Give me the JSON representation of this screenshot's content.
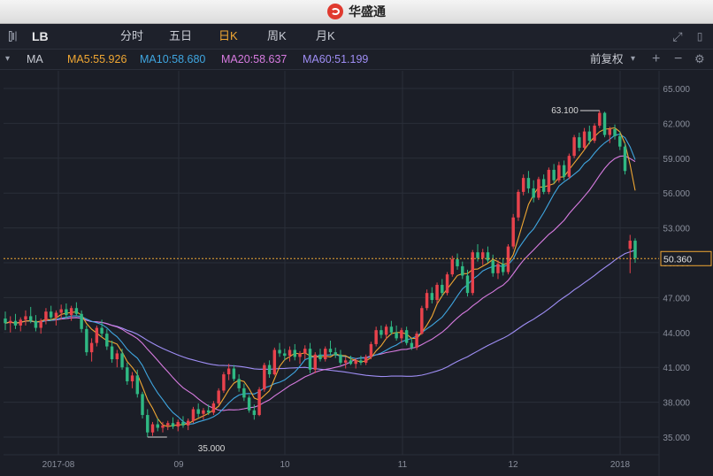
{
  "app": {
    "title": "华盛通"
  },
  "toolbar": {
    "symbol": "LB",
    "tabs": [
      {
        "label": "分时",
        "active": false
      },
      {
        "label": "五日",
        "active": false
      },
      {
        "label": "日K",
        "active": true
      },
      {
        "label": "周K",
        "active": false
      },
      {
        "label": "月K",
        "active": false
      }
    ]
  },
  "indicator": {
    "name": "MA",
    "ma5": "MA5:55.926",
    "ma10": "MA10:58.680",
    "ma20": "MA20:58.637",
    "ma60": "MA60:51.199",
    "adjust": "前复权",
    "colors": {
      "ma5": "#f0a733",
      "ma10": "#3fa6e0",
      "ma20": "#d77be0",
      "ma60": "#9f8ef5"
    }
  },
  "colors": {
    "up": "#e8424c",
    "down": "#2fb883",
    "accent": "#f0a733",
    "background": "#1b1e27"
  },
  "chart_data": {
    "type": "candlestick",
    "ylim": [
      34,
      66
    ],
    "yticks": [
      "65.000",
      "62.000",
      "59.000",
      "56.000",
      "53.000",
      "50.000",
      "47.000",
      "44.000",
      "41.000",
      "38.000",
      "35.000"
    ],
    "x_labels": [
      "2017-08",
      "09",
      "10",
      "11",
      "12",
      "2018"
    ],
    "last_price": "50.360",
    "high_label": "63.100",
    "low_label": "35.000",
    "ohlc": [
      [
        45.2,
        45.8,
        44.2,
        44.8
      ],
      [
        44.8,
        45.4,
        44.0,
        45.0
      ],
      [
        45.0,
        45.6,
        44.3,
        44.6
      ],
      [
        44.6,
        45.3,
        44.1,
        45.1
      ],
      [
        45.1,
        45.9,
        44.6,
        45.4
      ],
      [
        45.4,
        46.2,
        44.8,
        45.0
      ],
      [
        45.0,
        45.5,
        44.1,
        44.4
      ],
      [
        44.4,
        45.2,
        43.9,
        45.0
      ],
      [
        45.0,
        46.1,
        44.7,
        45.8
      ],
      [
        45.8,
        46.3,
        45.0,
        45.3
      ],
      [
        45.3,
        45.9,
        44.6,
        45.7
      ],
      [
        45.7,
        46.4,
        45.1,
        46.0
      ],
      [
        46.0,
        46.5,
        45.2,
        45.5
      ],
      [
        45.5,
        46.3,
        45.0,
        46.1
      ],
      [
        46.1,
        46.6,
        45.4,
        45.6
      ],
      [
        45.6,
        45.9,
        44.0,
        44.3
      ],
      [
        44.3,
        44.6,
        42.0,
        42.3
      ],
      [
        42.3,
        43.5,
        41.5,
        43.1
      ],
      [
        43.1,
        44.6,
        42.8,
        44.4
      ],
      [
        44.4,
        45.1,
        43.6,
        43.9
      ],
      [
        43.9,
        44.3,
        42.5,
        42.8
      ],
      [
        42.8,
        43.3,
        41.4,
        41.7
      ],
      [
        41.7,
        42.5,
        41.0,
        42.2
      ],
      [
        42.2,
        42.6,
        40.8,
        41.0
      ],
      [
        41.0,
        41.4,
        39.5,
        39.8
      ],
      [
        39.8,
        40.6,
        39.2,
        40.3
      ],
      [
        40.3,
        40.8,
        38.4,
        38.7
      ],
      [
        38.7,
        38.9,
        36.6,
        36.9
      ],
      [
        36.9,
        37.4,
        35.0,
        35.4
      ],
      [
        35.4,
        36.3,
        35.1,
        36.1
      ],
      [
        36.1,
        36.6,
        35.5,
        35.8
      ],
      [
        35.8,
        36.3,
        35.4,
        36.0
      ],
      [
        36.0,
        36.4,
        35.6,
        36.2
      ],
      [
        36.2,
        36.7,
        35.7,
        35.9
      ],
      [
        35.9,
        36.5,
        35.5,
        36.3
      ],
      [
        36.3,
        36.8,
        35.8,
        36.0
      ],
      [
        36.0,
        36.6,
        35.6,
        36.4
      ],
      [
        36.4,
        37.6,
        36.2,
        37.4
      ],
      [
        37.4,
        37.9,
        36.7,
        37.0
      ],
      [
        37.0,
        37.5,
        36.5,
        37.3
      ],
      [
        37.3,
        37.8,
        36.9,
        37.1
      ],
      [
        37.1,
        38.1,
        36.9,
        37.9
      ],
      [
        37.9,
        39.2,
        37.7,
        39.0
      ],
      [
        39.0,
        40.6,
        38.8,
        40.4
      ],
      [
        40.4,
        41.3,
        39.9,
        40.9
      ],
      [
        40.9,
        41.2,
        39.8,
        40.0
      ],
      [
        40.0,
        40.4,
        38.9,
        39.2
      ],
      [
        39.2,
        39.6,
        38.1,
        38.4
      ],
      [
        38.4,
        38.6,
        37.1,
        37.3
      ],
      [
        37.3,
        37.8,
        36.5,
        36.9
      ],
      [
        36.9,
        39.3,
        36.8,
        39.1
      ],
      [
        39.1,
        41.4,
        38.9,
        41.2
      ],
      [
        41.2,
        41.6,
        40.1,
        40.4
      ],
      [
        40.4,
        42.7,
        40.3,
        42.5
      ],
      [
        42.5,
        43.1,
        41.9,
        42.2
      ],
      [
        42.2,
        42.6,
        41.6,
        42.0
      ],
      [
        42.0,
        42.8,
        41.5,
        42.5
      ],
      [
        42.5,
        43.0,
        41.6,
        41.9
      ],
      [
        41.9,
        42.4,
        41.3,
        42.2
      ],
      [
        42.2,
        42.9,
        41.7,
        42.6
      ],
      [
        42.6,
        43.1,
        40.5,
        40.8
      ],
      [
        40.8,
        42.3,
        40.5,
        42.1
      ],
      [
        42.1,
        42.6,
        41.5,
        41.7
      ],
      [
        41.7,
        42.8,
        41.5,
        42.6
      ],
      [
        42.6,
        43.3,
        42.0,
        42.3
      ],
      [
        42.3,
        42.7,
        41.8,
        42.1
      ],
      [
        42.1,
        42.5,
        41.2,
        41.4
      ],
      [
        41.4,
        41.9,
        40.9,
        41.6
      ],
      [
        41.6,
        42.0,
        41.2,
        41.3
      ],
      [
        41.3,
        41.8,
        40.9,
        41.6
      ],
      [
        41.6,
        42.0,
        41.2,
        41.4
      ],
      [
        41.4,
        42.1,
        41.2,
        41.9
      ],
      [
        41.9,
        43.2,
        41.7,
        43.0
      ],
      [
        43.0,
        44.5,
        42.8,
        44.2
      ],
      [
        44.2,
        44.6,
        43.5,
        43.8
      ],
      [
        43.8,
        44.7,
        43.4,
        44.5
      ],
      [
        44.5,
        45.0,
        43.8,
        44.0
      ],
      [
        44.0,
        44.6,
        43.3,
        43.5
      ],
      [
        43.5,
        44.4,
        43.1,
        44.2
      ],
      [
        44.2,
        44.5,
        42.9,
        43.1
      ],
      [
        43.1,
        43.5,
        42.5,
        42.7
      ],
      [
        42.7,
        44.1,
        42.5,
        43.9
      ],
      [
        43.9,
        46.3,
        43.8,
        46.1
      ],
      [
        46.1,
        47.7,
        45.9,
        47.4
      ],
      [
        47.4,
        47.9,
        46.5,
        46.8
      ],
      [
        46.8,
        48.3,
        46.5,
        48.1
      ],
      [
        48.1,
        48.6,
        47.1,
        47.4
      ],
      [
        47.4,
        49.2,
        47.2,
        49.0
      ],
      [
        49.0,
        50.6,
        48.8,
        50.3
      ],
      [
        50.3,
        50.8,
        49.4,
        49.7
      ],
      [
        49.7,
        50.1,
        48.6,
        48.9
      ],
      [
        48.9,
        49.4,
        47.1,
        47.4
      ],
      [
        47.4,
        51.1,
        47.2,
        50.9
      ],
      [
        50.9,
        51.6,
        50.1,
        50.4
      ],
      [
        50.4,
        51.2,
        49.8,
        50.9
      ],
      [
        50.9,
        51.4,
        50.0,
        50.2
      ],
      [
        50.2,
        50.7,
        48.8,
        49.1
      ],
      [
        49.1,
        50.2,
        48.6,
        49.9
      ],
      [
        49.9,
        50.4,
        48.9,
        49.2
      ],
      [
        49.2,
        51.6,
        49.0,
        51.4
      ],
      [
        51.4,
        54.2,
        51.2,
        53.9
      ],
      [
        53.9,
        56.3,
        53.6,
        56.1
      ],
      [
        56.1,
        57.6,
        55.8,
        57.3
      ],
      [
        57.3,
        57.9,
        56.0,
        56.4
      ],
      [
        56.4,
        57.1,
        55.2,
        55.6
      ],
      [
        55.6,
        57.4,
        55.4,
        57.2
      ],
      [
        57.2,
        57.6,
        55.9,
        56.1
      ],
      [
        56.1,
        58.2,
        55.9,
        58.0
      ],
      [
        58.0,
        58.5,
        56.8,
        57.1
      ],
      [
        57.1,
        58.7,
        56.9,
        58.4
      ],
      [
        58.4,
        58.8,
        57.1,
        57.4
      ],
      [
        57.4,
        59.4,
        57.2,
        59.2
      ],
      [
        59.2,
        61.0,
        59.0,
        60.8
      ],
      [
        60.8,
        61.2,
        59.6,
        59.9
      ],
      [
        59.9,
        61.6,
        59.7,
        61.3
      ],
      [
        61.3,
        61.8,
        60.2,
        60.5
      ],
      [
        60.5,
        62.0,
        60.3,
        61.8
      ],
      [
        61.8,
        63.1,
        61.6,
        62.9
      ],
      [
        62.9,
        63.0,
        60.8,
        61.0
      ],
      [
        61.0,
        61.7,
        60.3,
        61.5
      ],
      [
        61.5,
        61.9,
        60.6,
        60.9
      ],
      [
        60.9,
        61.3,
        59.7,
        60.0
      ],
      [
        60.0,
        60.3,
        57.6,
        57.9
      ],
      [
        51.2,
        52.4,
        49.1,
        51.9
      ],
      [
        51.9,
        52.1,
        50.0,
        50.4
      ]
    ]
  }
}
